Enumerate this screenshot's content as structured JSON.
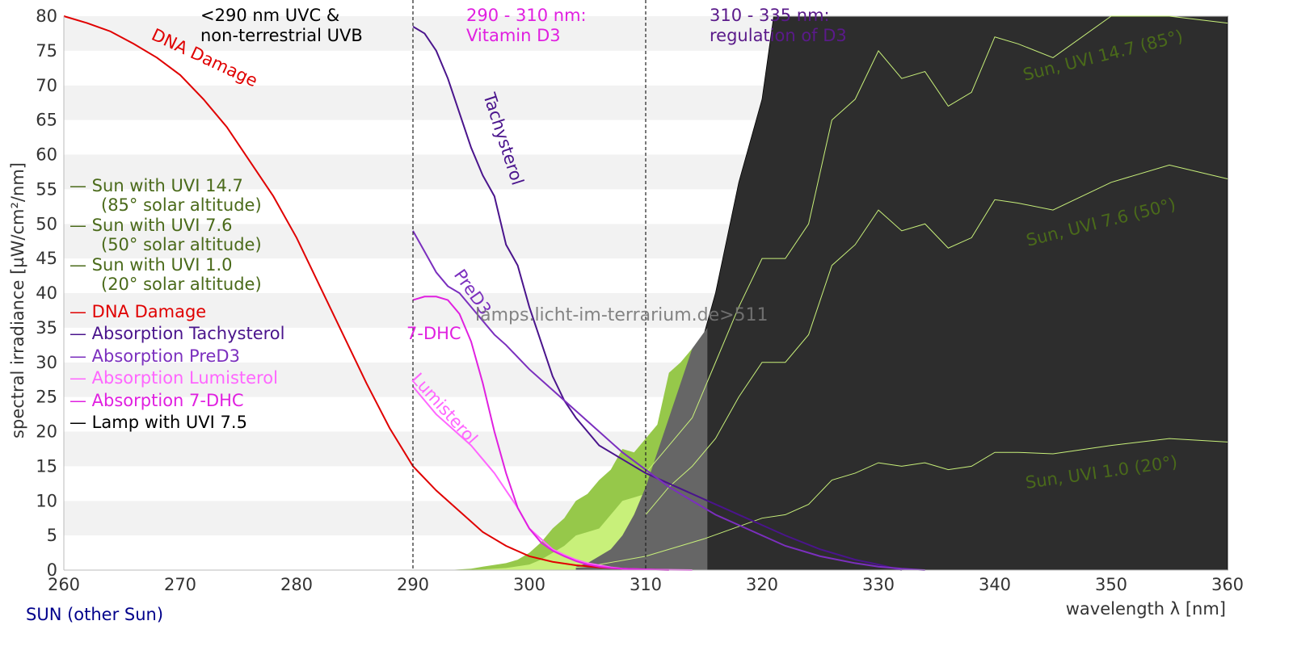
{
  "chart_data": {
    "type": "area",
    "title": "",
    "xlabel": "wavelength λ [nm]",
    "ylabel": "spectral irradiance [µW/cm²/nm]",
    "xlim": [
      260,
      360
    ],
    "ylim": [
      0,
      80
    ],
    "x_ticks": [
      260,
      270,
      280,
      290,
      300,
      310,
      320,
      330,
      340,
      350,
      360
    ],
    "y_ticks": [
      0,
      5,
      10,
      15,
      20,
      25,
      30,
      35,
      40,
      45,
      50,
      55,
      60,
      65,
      70,
      75,
      80
    ],
    "grid": "horizontal bands",
    "legend_position": "left",
    "region_labels": [
      {
        "lines": [
          "<290 nm UVC &",
          "non-terrestrial UVB"
        ],
        "color": "#000000"
      },
      {
        "lines": [
          "290 - 310 nm:",
          "Vitamin D3"
        ],
        "color": "#e020e0"
      },
      {
        "lines": [
          "310 - 335 nm:",
          "regulation of D3"
        ],
        "color": "#5a1a8a"
      }
    ],
    "region_dividers": [
      290,
      310
    ],
    "watermark": "lamps.licht-im-terrarium.de>511",
    "footer": "SUN (other Sun)",
    "legend": [
      {
        "lines": [
          "— Sun with UVI 14.7",
          "(85° solar altitude)"
        ],
        "color": "#4a6a1a"
      },
      {
        "lines": [
          "— Sun with UVI 7.6",
          "(50° solar altitude)"
        ],
        "color": "#4a6a1a"
      },
      {
        "lines": [
          "— Sun with UVI 1.0",
          "(20° solar altitude)"
        ],
        "color": "#4a6a1a"
      },
      {
        "lines": [
          "— DNA Damage"
        ],
        "color": "#e00000"
      },
      {
        "lines": [
          "— Absorption Tachysterol"
        ],
        "color": "#4a148c"
      },
      {
        "lines": [
          "— Absorption PreD3"
        ],
        "color": "#7b2fbe"
      },
      {
        "lines": [
          "— Absorption Lumisterol"
        ],
        "color": "#ff66ff"
      },
      {
        "lines": [
          "— Absorption 7-DHC"
        ],
        "color": "#e020e0"
      },
      {
        "lines": [
          "— Lamp with UVI 7.5"
        ],
        "color": "#000000"
      }
    ],
    "curve_labels": [
      {
        "text": "DNA Damage",
        "color": "#e00000"
      },
      {
        "text": "Tachysterol",
        "color": "#4a148c"
      },
      {
        "text": "PreD3",
        "color": "#7b2fbe"
      },
      {
        "text": "7-DHC",
        "color": "#e020e0"
      },
      {
        "text": "Lumisterol",
        "color": "#ff66ff"
      }
    ],
    "sun_labels": [
      {
        "text": "Sun, UVI 14.7 (85°)"
      },
      {
        "text": "Sun, UVI 7.6 (50°)"
      },
      {
        "text": "Sun, UVI 1.0 (20°)"
      }
    ],
    "series": [
      {
        "name": "Lamp with UVI 7.5",
        "kind": "fill",
        "color": "#2d2d2d",
        "x": [
          305,
          306,
          307,
          308,
          309,
          310,
          311,
          312,
          313,
          314,
          315,
          316,
          317,
          318,
          319,
          320,
          321,
          322,
          323,
          324,
          325,
          326,
          360
        ],
        "y": [
          0.5,
          1,
          2,
          3,
          5,
          8,
          12,
          18,
          24,
          30,
          34,
          40,
          48,
          56,
          62,
          68,
          80,
          82,
          82,
          82,
          82,
          82,
          82
        ]
      },
      {
        "name": "Sun with UVI 14.7",
        "kind": "fill",
        "color": "#96c84a",
        "x": [
          293,
          295,
          296,
          298,
          299,
          300,
          301,
          302,
          303,
          304,
          305,
          306,
          307,
          308,
          309,
          310,
          311,
          312,
          313,
          314,
          315
        ],
        "y": [
          0,
          0.2,
          0.5,
          1,
          1.5,
          2.5,
          4,
          6,
          7.5,
          10,
          11,
          13,
          14.5,
          17.5,
          17,
          19,
          21,
          28.5,
          30,
          32,
          33
        ]
      },
      {
        "name": "Sun with UVI 7.6",
        "kind": "fill",
        "color": "#c8f07a",
        "x": [
          294,
          296,
          298,
          300,
          301,
          302,
          303,
          304,
          305,
          306,
          307,
          308,
          309,
          310,
          311,
          312,
          313,
          314,
          315
        ],
        "y": [
          0,
          0.1,
          0.3,
          0.8,
          1.5,
          2.5,
          3.5,
          5,
          5.5,
          6,
          8,
          10,
          10.5,
          11,
          13,
          15,
          16.5,
          18,
          19
        ]
      },
      {
        "name": "Lamp with UVI 7.5 (behind glass)",
        "kind": "fill",
        "color": "#666666",
        "x": [
          304,
          305,
          306,
          307,
          308,
          309,
          310,
          311,
          312,
          313,
          314,
          315.3
        ],
        "y": [
          0.5,
          1,
          2,
          3,
          5,
          8,
          12,
          17,
          22,
          27,
          32,
          35
        ]
      },
      {
        "name": "Sun with UVI 14.7",
        "kind": "line",
        "color": "#c8f07a",
        "x": [
          310,
          312,
          314,
          316,
          318,
          320,
          322,
          324,
          326,
          328,
          330,
          332,
          334,
          336,
          338,
          340,
          342,
          345,
          350,
          355,
          360
        ],
        "y": [
          14,
          18,
          22,
          30,
          38,
          45,
          45,
          50,
          65,
          68,
          75,
          71,
          72,
          67,
          69,
          77,
          76,
          74,
          80,
          83,
          79
        ]
      },
      {
        "name": "Sun with UVI 7.6",
        "kind": "line",
        "color": "#c8f07a",
        "x": [
          310,
          312,
          314,
          316,
          318,
          320,
          322,
          324,
          326,
          328,
          330,
          332,
          334,
          336,
          338,
          340,
          342,
          345,
          350,
          355,
          360
        ],
        "y": [
          8,
          12,
          15,
          19,
          25,
          30,
          30,
          34,
          44,
          47,
          52,
          49,
          50,
          46.5,
          48,
          53.5,
          53,
          52,
          56,
          58.5,
          56.5
        ]
      },
      {
        "name": "Sun with UVI 1.0",
        "kind": "line",
        "color": "#c8f07a",
        "x": [
          300,
          305,
          310,
          315,
          320,
          322,
          324,
          326,
          328,
          330,
          332,
          334,
          336,
          338,
          340,
          342,
          345,
          350,
          355,
          360
        ],
        "y": [
          0,
          0.5,
          2,
          4.5,
          7.5,
          8,
          9.5,
          13,
          14,
          15.5,
          15,
          15.5,
          14.5,
          15,
          17,
          17,
          16.8,
          18,
          19,
          18.5
        ]
      },
      {
        "name": "DNA Damage",
        "kind": "line",
        "color": "#e00000",
        "x": [
          260,
          262,
          264,
          266,
          268,
          270,
          272,
          274,
          276,
          278,
          280,
          282,
          284,
          286,
          288,
          290,
          292,
          294,
          296,
          298,
          300,
          302,
          304,
          306,
          308
        ],
        "y": [
          80,
          79,
          77.8,
          76,
          74,
          71.5,
          68,
          64,
          59,
          54,
          48,
          41,
          34,
          27,
          20.5,
          15,
          11.5,
          8.5,
          5.5,
          3.5,
          2,
          1.2,
          0.7,
          0.4,
          0.2
        ]
      },
      {
        "name": "Absorption Tachysterol",
        "kind": "line",
        "color": "#4a148c",
        "x": [
          290,
          291,
          292,
          293,
          294,
          295,
          296,
          297,
          298,
          299,
          300,
          301,
          302,
          303,
          304,
          305,
          306,
          308,
          310,
          312,
          314,
          316,
          318,
          320,
          322,
          325,
          328,
          330,
          332
        ],
        "y": [
          78.5,
          77.5,
          75,
          71,
          66,
          61,
          57,
          54,
          47,
          44,
          38,
          33,
          28,
          24.5,
          22,
          20,
          18,
          16,
          14,
          12.5,
          11,
          9.5,
          8,
          6.5,
          5,
          3,
          1.5,
          0.8,
          0
        ]
      },
      {
        "name": "Absorption PreD3",
        "kind": "line",
        "color": "#7b2fbe",
        "x": [
          290,
          291,
          292,
          293,
          294,
          295,
          296,
          297,
          298,
          300,
          302,
          304,
          306,
          308,
          310,
          312,
          314,
          316,
          318,
          320,
          322,
          325,
          328,
          330,
          332,
          334
        ],
        "y": [
          49,
          46,
          43,
          41,
          40,
          38,
          36,
          34,
          32.5,
          29,
          26,
          23,
          20,
          17,
          14.5,
          12,
          10,
          8,
          6.5,
          5,
          3.5,
          2,
          1,
          0.5,
          0.2,
          0
        ]
      },
      {
        "name": "Absorption Lumisterol",
        "kind": "line",
        "color": "#ff66ff",
        "x": [
          290,
          291,
          292,
          293,
          294,
          295,
          296,
          297,
          298,
          299,
          300,
          301,
          302,
          303,
          304,
          305,
          306,
          307,
          308,
          310,
          312,
          314
        ],
        "y": [
          26.5,
          24.5,
          22.5,
          21,
          19.5,
          18,
          16,
          14,
          11.5,
          9,
          6,
          4.5,
          3,
          2.2,
          1.5,
          1,
          0.7,
          0.4,
          0.2,
          0.1,
          0.05,
          0
        ]
      },
      {
        "name": "Absorption 7-DHC",
        "kind": "line",
        "color": "#e020e0",
        "x": [
          290,
          291,
          292,
          293,
          294,
          295,
          296,
          297,
          298,
          299,
          300,
          301,
          302,
          303,
          304,
          305,
          306,
          307,
          308,
          310,
          312
        ],
        "y": [
          39,
          39.5,
          39.5,
          39,
          37,
          33,
          27,
          20,
          14,
          9,
          6,
          4,
          2.8,
          2,
          1.3,
          0.8,
          0.5,
          0.3,
          0.2,
          0.1,
          0
        ]
      }
    ]
  }
}
